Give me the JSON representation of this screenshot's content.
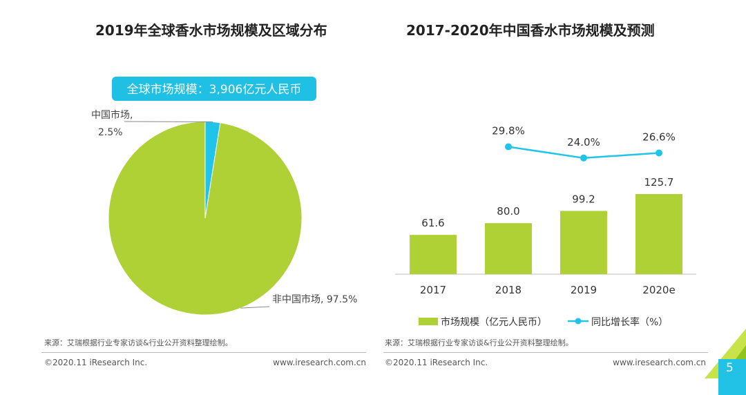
{
  "left_panel": {
    "title": "2019年全球香水市场规模及区域分布",
    "badge_text": "全球市场规模：3,906亿元人民币",
    "source": "来源：艾瑞根据行业专家访谈&行业公开资料整理绘制。",
    "copyright": "©2020.11 iResearch Inc.",
    "website": "www.iresearch.com.cn"
  },
  "right_panel": {
    "title": "2017-2020年中国香水市场规模及预测",
    "source": "来源：艾瑞根据行业专家访谈&行业公开资料整理绘制。",
    "copyright": "©2020.11 iResearch Inc.",
    "website": "www.iresearch.com.cn"
  },
  "page_number": "5",
  "colors": {
    "green": "#afd136",
    "cyan": "#20c4e8",
    "badge_bg": "#1fc0e4"
  },
  "chart_data": [
    {
      "type": "pie",
      "title": "2019年全球香水市场规模及区域分布",
      "slices": [
        {
          "label": "中国市场,",
          "pct_label": "2.5%",
          "value": 2.5,
          "color": "#20c4e8"
        },
        {
          "label": "非中国市场, 97.5%",
          "value": 97.5,
          "color": "#afd136"
        }
      ]
    },
    {
      "type": "bar",
      "title": "2017-2020年中国香水市场规模及预测",
      "categories": [
        "2017",
        "2018",
        "2019",
        "2020e"
      ],
      "series": [
        {
          "name": "市场规模（亿元人民币）",
          "type": "bar",
          "values": [
            61.6,
            80.0,
            99.2,
            125.7
          ],
          "labels": [
            "61.6",
            "80.0",
            "99.2",
            "125.7"
          ]
        },
        {
          "name": "同比增长率（%）",
          "type": "line",
          "values": [
            null,
            29.8,
            24.0,
            26.6
          ],
          "labels": [
            "",
            "29.8%",
            "24.0%",
            "26.6%"
          ]
        }
      ],
      "ylim": [
        0,
        130
      ]
    }
  ]
}
